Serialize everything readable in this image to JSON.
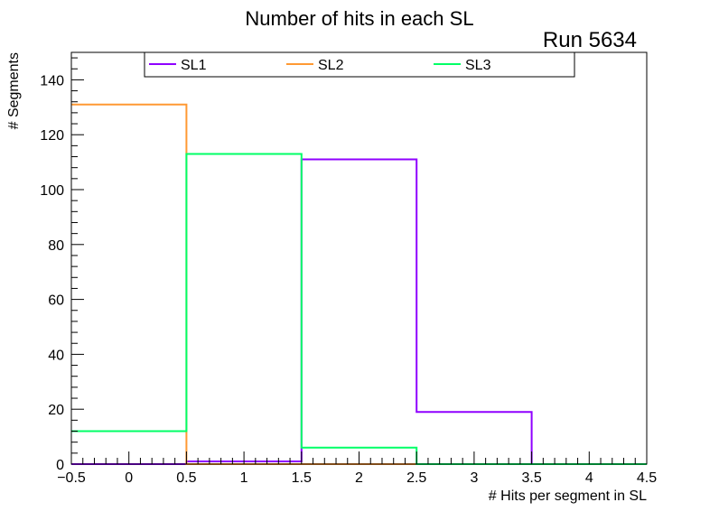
{
  "chart_data": {
    "type": "histogram",
    "title": "Number of hits in each SL",
    "annotation": "Run 5634",
    "xlabel": "# Hits per segment in SL",
    "ylabel": "# Segments",
    "xlim": [
      -0.5,
      4.5
    ],
    "ylim": [
      0,
      150
    ],
    "xticks": [
      "−0.5",
      "0",
      "0.5",
      "1",
      "1.5",
      "2",
      "2.5",
      "3",
      "3.5",
      "4",
      "4.5"
    ],
    "yticks": [
      "0",
      "20",
      "40",
      "60",
      "80",
      "100",
      "120",
      "140"
    ],
    "bin_edges": [
      -0.5,
      0.5,
      1.5,
      2.5,
      3.5,
      4.5
    ],
    "legend_position": "top",
    "series": [
      {
        "name": "SL1",
        "color": "#8f00ff",
        "values": [
          0,
          1,
          111,
          19,
          0
        ]
      },
      {
        "name": "SL2",
        "color": "#ff9933",
        "values": [
          131,
          0,
          0,
          0,
          0
        ]
      },
      {
        "name": "SL3",
        "color": "#00ff66",
        "values": [
          12,
          113,
          6,
          0,
          0
        ]
      }
    ]
  }
}
